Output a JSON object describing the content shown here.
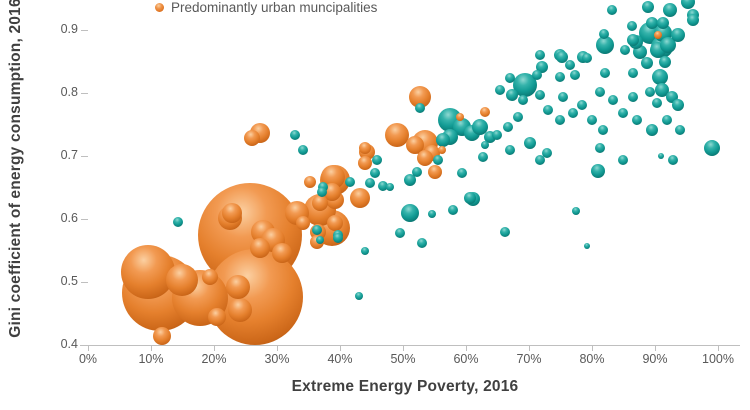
{
  "legend": {
    "items": [
      {
        "label": "Predominantly urban muncipalities",
        "series": "urban",
        "color": "#E07523"
      }
    ]
  },
  "axes": {
    "x": {
      "title": "Extreme Energy Poverty, 2016",
      "tick_labels": [
        "0%",
        "10%",
        "20%",
        "30%",
        "40%",
        "50%",
        "60%",
        "70%",
        "80%",
        "90%",
        "100%"
      ],
      "min": 0,
      "max": 100
    },
    "y": {
      "title": "Gini coefficient of energy consumption, 2016",
      "tick_labels": [
        "0.4",
        "0.5",
        "0.6",
        "0.7",
        "0.8",
        "0.9"
      ],
      "visible_min": 0.4,
      "visible_max": 0.95
    }
  },
  "chart_data": {
    "type": "scatter",
    "subtype": "bubble",
    "xlabel": "Extreme Energy Poverty, 2016",
    "ylabel": "Gini coefficient of energy consumption, 2016",
    "xlim": [
      0,
      100
    ],
    "ylim_visible": [
      0.4,
      0.95
    ],
    "grid": false,
    "legend_position": "top",
    "point_format": "[extreme_energy_poverty_pct, gini_coefficient, bubble_radius_px]",
    "series": [
      {
        "name": "Predominantly urban muncipalities",
        "id": "urban",
        "color": "#E07523",
        "points": [
          [
            25.7,
            0.575,
            52
          ],
          [
            26.5,
            0.476,
            48
          ],
          [
            11.4,
            0.483,
            38
          ],
          [
            9.5,
            0.516,
            27
          ],
          [
            17.8,
            0.475,
            28
          ],
          [
            14.9,
            0.503,
            16
          ],
          [
            38.7,
            0.586,
            18
          ],
          [
            22.9,
            0.61,
            10
          ],
          [
            22.5,
            0.602,
            12
          ],
          [
            27.8,
            0.579,
            12
          ],
          [
            33.2,
            0.61,
            12
          ],
          [
            34.1,
            0.594,
            7
          ],
          [
            36.8,
            0.625,
            8
          ],
          [
            35.2,
            0.659,
            6
          ],
          [
            38.9,
            0.667,
            12
          ],
          [
            39.2,
            0.63,
            9
          ],
          [
            29.4,
            0.567,
            12
          ],
          [
            27.3,
            0.554,
            10
          ],
          [
            30.8,
            0.546,
            10
          ],
          [
            24.1,
            0.456,
            12
          ],
          [
            20.5,
            0.444,
            9
          ],
          [
            11.7,
            0.414,
            9
          ],
          [
            19.4,
            0.508,
            8
          ],
          [
            23.8,
            0.492,
            12
          ],
          [
            27.3,
            0.737,
            10
          ],
          [
            26.0,
            0.729,
            8
          ],
          [
            36.3,
            0.563,
            7
          ],
          [
            36.8,
            0.614,
            16
          ],
          [
            36.5,
            0.579,
            8
          ],
          [
            39.2,
            0.594,
            8
          ],
          [
            39.2,
            0.662,
            15
          ],
          [
            38.7,
            0.643,
            9
          ],
          [
            43.2,
            0.633,
            10
          ],
          [
            44.0,
            0.689,
            7
          ],
          [
            44.3,
            0.706,
            8
          ],
          [
            49.0,
            0.733,
            12
          ],
          [
            51.9,
            0.717,
            9
          ],
          [
            54.6,
            0.705,
            8
          ],
          [
            53.5,
            0.697,
            8
          ],
          [
            44.0,
            0.713,
            6
          ],
          [
            52.7,
            0.794,
            11
          ],
          [
            53.5,
            0.721,
            13
          ],
          [
            55.1,
            0.675,
            7
          ],
          [
            56.2,
            0.71,
            4
          ],
          [
            63.0,
            0.77,
            5
          ],
          [
            59.0,
            0.762,
            4
          ],
          [
            90.5,
            0.892,
            4
          ]
        ]
      },
      {
        "name": "",
        "id": "teal",
        "color": "#129B94",
        "points": [
          [
            14.3,
            0.595,
            5
          ],
          [
            32.9,
            0.733,
            5
          ],
          [
            34.1,
            0.71,
            5
          ],
          [
            37.3,
            0.651,
            5
          ],
          [
            36.3,
            0.583,
            5
          ],
          [
            39.7,
            0.575,
            5
          ],
          [
            36.8,
            0.567,
            4
          ],
          [
            37.1,
            0.643,
            5
          ],
          [
            39.7,
            0.57,
            5
          ],
          [
            45.9,
            0.694,
            5
          ],
          [
            45.6,
            0.673,
            5
          ],
          [
            41.6,
            0.659,
            5
          ],
          [
            44.8,
            0.657,
            5
          ],
          [
            46.8,
            0.652,
            5
          ],
          [
            47.9,
            0.651,
            4
          ],
          [
            51.1,
            0.662,
            6
          ],
          [
            52.2,
            0.675,
            5
          ],
          [
            55.6,
            0.694,
            5
          ],
          [
            51.1,
            0.61,
            9
          ],
          [
            49.5,
            0.578,
            5
          ],
          [
            53.0,
            0.562,
            5
          ],
          [
            44.0,
            0.549,
            4
          ],
          [
            43.0,
            0.478,
            4
          ],
          [
            54.6,
            0.608,
            4
          ],
          [
            52.7,
            0.776,
            5
          ],
          [
            57.5,
            0.757,
            12
          ],
          [
            59.4,
            0.746,
            9
          ],
          [
            57.5,
            0.73,
            8
          ],
          [
            61.0,
            0.737,
            8
          ],
          [
            62.2,
            0.746,
            8
          ],
          [
            56.3,
            0.725,
            7
          ],
          [
            63.8,
            0.73,
            6
          ],
          [
            64.9,
            0.733,
            5
          ],
          [
            63.0,
            0.718,
            4
          ],
          [
            59.4,
            0.673,
            5
          ],
          [
            62.7,
            0.698,
            5
          ],
          [
            60.6,
            0.633,
            6
          ],
          [
            57.9,
            0.614,
            5
          ],
          [
            61.1,
            0.632,
            7
          ],
          [
            66.2,
            0.579,
            5
          ],
          [
            77.5,
            0.613,
            4
          ],
          [
            79.2,
            0.557,
            3
          ],
          [
            81.0,
            0.676,
            7
          ],
          [
            91.0,
            0.7,
            3
          ],
          [
            99.0,
            0.713,
            8
          ],
          [
            67.0,
            0.824,
            5
          ],
          [
            69.4,
            0.813,
            12
          ],
          [
            67.3,
            0.797,
            6
          ],
          [
            65.4,
            0.805,
            5
          ],
          [
            66.7,
            0.746,
            5
          ],
          [
            68.3,
            0.762,
            5
          ],
          [
            70.2,
            0.721,
            6
          ],
          [
            67.0,
            0.71,
            5
          ],
          [
            71.7,
            0.694,
            5
          ],
          [
            72.9,
            0.705,
            5
          ],
          [
            69.0,
            0.789,
            5
          ],
          [
            71.7,
            0.797,
            5
          ],
          [
            72.1,
            0.841,
            6
          ],
          [
            71.3,
            0.829,
            5
          ],
          [
            74.9,
            0.86,
            6
          ],
          [
            79.2,
            0.856,
            5
          ],
          [
            76.5,
            0.844,
            5
          ],
          [
            77.3,
            0.829,
            5
          ],
          [
            74.9,
            0.825,
            5
          ],
          [
            78.6,
            0.857,
            6
          ],
          [
            75.2,
            0.857,
            6
          ],
          [
            71.7,
            0.86,
            5
          ],
          [
            82.1,
            0.876,
            9
          ],
          [
            86.5,
            0.884,
            6
          ],
          [
            87.6,
            0.865,
            7
          ],
          [
            87.0,
            0.881,
            7
          ],
          [
            85.2,
            0.868,
            5
          ],
          [
            88.7,
            0.848,
            6
          ],
          [
            90.8,
            0.825,
            8
          ],
          [
            86.5,
            0.832,
            5
          ],
          [
            82.1,
            0.832,
            5
          ],
          [
            81.9,
            0.894,
            5
          ],
          [
            88.9,
            0.937,
            6
          ],
          [
            83.2,
            0.932,
            5
          ],
          [
            89.5,
            0.911,
            6
          ],
          [
            91.3,
            0.911,
            6
          ],
          [
            86.3,
            0.906,
            5
          ],
          [
            89.2,
            0.895,
            11
          ],
          [
            90.5,
            0.868,
            8
          ],
          [
            95.2,
            0.944,
            7
          ],
          [
            92.4,
            0.932,
            7
          ],
          [
            96.0,
            0.924,
            6
          ],
          [
            91.3,
            0.895,
            9
          ],
          [
            93.7,
            0.892,
            7
          ],
          [
            92.1,
            0.876,
            8
          ],
          [
            91.1,
            0.873,
            11
          ],
          [
            91.6,
            0.849,
            6
          ],
          [
            91.1,
            0.805,
            7
          ],
          [
            92.7,
            0.794,
            6
          ],
          [
            93.7,
            0.781,
            6
          ],
          [
            96.0,
            0.916,
            6
          ],
          [
            81.3,
            0.802,
            5
          ],
          [
            83.3,
            0.789,
            5
          ],
          [
            86.5,
            0.794,
            5
          ],
          [
            89.2,
            0.802,
            5
          ],
          [
            90.3,
            0.784,
            5
          ],
          [
            84.9,
            0.768,
            5
          ],
          [
            87.1,
            0.757,
            5
          ],
          [
            89.5,
            0.741,
            6
          ],
          [
            91.9,
            0.757,
            5
          ],
          [
            94.0,
            0.741,
            5
          ],
          [
            81.7,
            0.741,
            5
          ],
          [
            80.0,
            0.757,
            5
          ],
          [
            77.0,
            0.768,
            5
          ],
          [
            74.9,
            0.757,
            5
          ],
          [
            73.0,
            0.773,
            5
          ],
          [
            78.4,
            0.781,
            5
          ],
          [
            75.4,
            0.794,
            5
          ],
          [
            84.9,
            0.694,
            5
          ],
          [
            81.3,
            0.713,
            5
          ],
          [
            92.9,
            0.694,
            5
          ]
        ]
      }
    ]
  }
}
